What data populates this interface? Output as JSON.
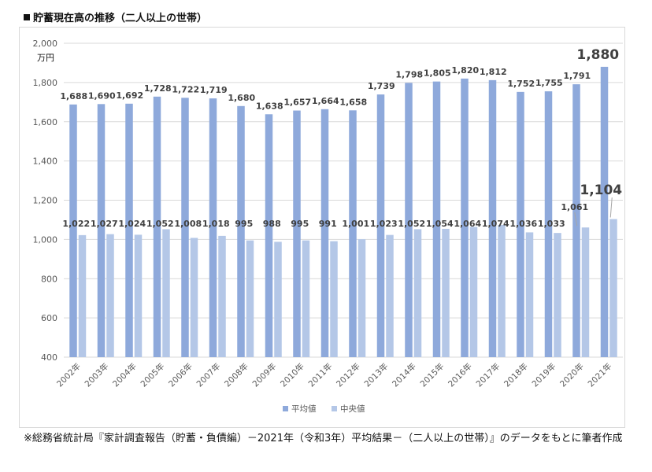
{
  "title": "貯蓄現在高の推移（二人以上の世帯）",
  "footnote": "※総務省統計局『家計調査報告（貯蓄・負債編）－2021年（令和3年）平均結果－（二人以上の世帯）』のデータをもとに筆者作成",
  "colors": {
    "avg": "#8ea9db",
    "median": "#b4c7e7",
    "text": "#404040",
    "grid": "#d9d9d9",
    "axis": "#595959"
  },
  "chart_data": {
    "type": "bar",
    "categories": [
      "2002年",
      "2003年",
      "2004年",
      "2005年",
      "2006年",
      "2007年",
      "2008年",
      "2009年",
      "2010年",
      "2011年",
      "2012年",
      "2013年",
      "2014年",
      "2015年",
      "2016年",
      "2017年",
      "2018年",
      "2019年",
      "2020年",
      "2021年"
    ],
    "series": [
      {
        "name": "平均値",
        "values": [
          1688,
          1690,
          1692,
          1728,
          1722,
          1719,
          1680,
          1638,
          1657,
          1664,
          1658,
          1739,
          1798,
          1805,
          1820,
          1812,
          1752,
          1755,
          1791,
          1880
        ]
      },
      {
        "name": "中央値",
        "values": [
          1022,
          1027,
          1024,
          1052,
          1008,
          1018,
          995,
          988,
          995,
          991,
          1001,
          1023,
          1052,
          1054,
          1064,
          1074,
          1036,
          1033,
          1061,
          1104
        ]
      }
    ],
    "ylabel": "万円",
    "ylim": [
      400,
      2000
    ],
    "yticks": [
      400,
      600,
      800,
      1000,
      1200,
      1400,
      1600,
      1800,
      2000
    ],
    "ytick_labels": [
      "400",
      "600",
      "800",
      "1,000",
      "1,200",
      "1,400",
      "1,600",
      "1,800",
      "2,000"
    ],
    "grid": true,
    "legend": "bottom"
  }
}
